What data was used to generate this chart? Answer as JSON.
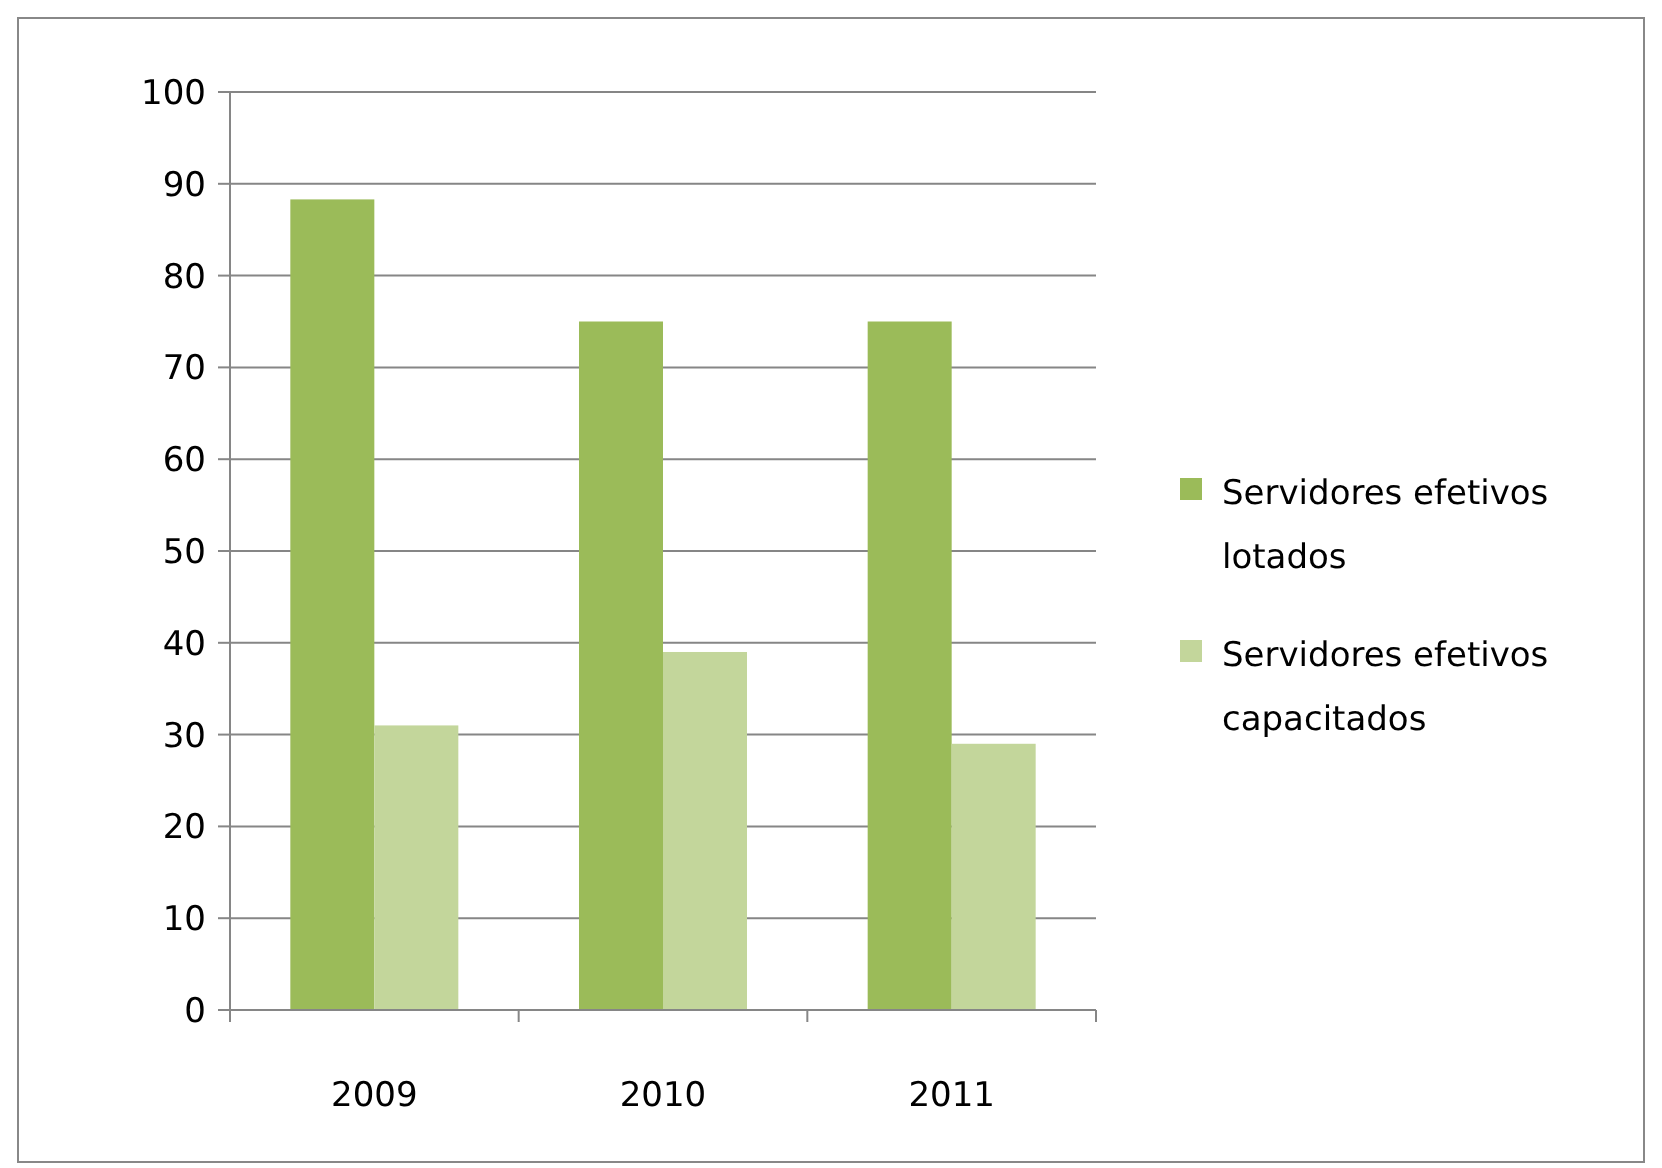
{
  "chart_data": {
    "type": "bar",
    "categories": [
      "2009",
      "2010",
      "2011"
    ],
    "series": [
      {
        "name": "Servidores efetivos lotados",
        "color": "#9bbb59",
        "values": [
          88.3,
          75,
          75
        ]
      },
      {
        "name": "Servidores efetivos capacitados",
        "color": "#c3d69b",
        "values": [
          31,
          39,
          29
        ]
      }
    ],
    "ylim": [
      0,
      100
    ],
    "yticks": [
      0,
      10,
      20,
      30,
      40,
      50,
      60,
      70,
      80,
      90,
      100
    ],
    "grid": "y",
    "legend": "right"
  }
}
